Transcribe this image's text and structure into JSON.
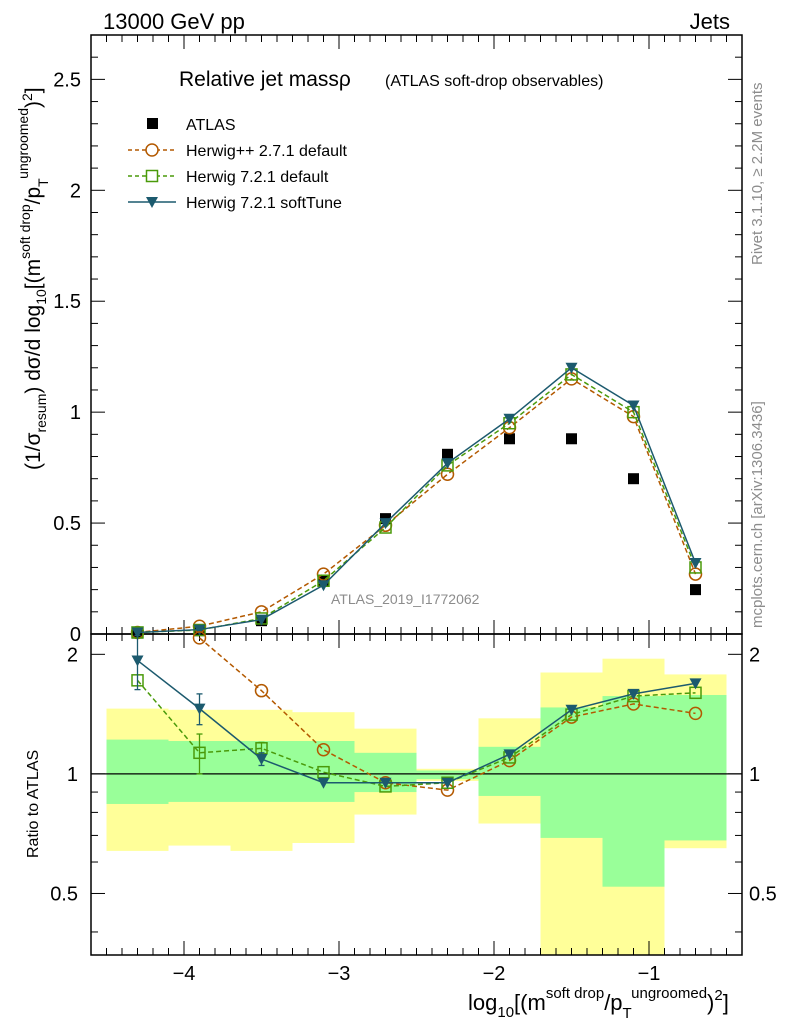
{
  "header": {
    "left": "13000 GeV pp",
    "right": "Jets"
  },
  "side_labels": {
    "rivet": "Rivet 3.1.10, ≥ 2.2M events",
    "mcplots": "mcplots.cern.ch [arXiv:1306.3436]"
  },
  "plot_title": {
    "main": "Relative jet massρ",
    "sub": "(ATLAS soft-drop observables)"
  },
  "watermark": "ATLAS_2019_I1772062",
  "axis_labels": {
    "main_y": "(1/σ_resum) dσ/d log10[(m^soft drop/pT^ungroomed)2]",
    "ratio_y": "Ratio to ATLAS",
    "x": "log10[(m^soft drop/pT^ungroomed)2]"
  },
  "colors": {
    "atlas": "#000000",
    "herwigpp": "#b35900",
    "herwig721": "#4a9a0a",
    "softtune": "#1c5a6e",
    "band_inner": "#99ff99",
    "band_outer": "#ffff99"
  },
  "chart_data": [
    {
      "type": "line",
      "panel": "main",
      "title": "Relative jet massρ (ATLAS soft-drop observables)",
      "xlabel": "log10[(m^soft drop/pT^ungroomed)2]",
      "ylabel": "(1/σ_resum) dσ/d log10[(m^soft drop/pT^ungroomed)2]",
      "xlim": [
        -4.6,
        -0.4
      ],
      "ylim": [
        0,
        2.7
      ],
      "x_ticks": [
        "−4",
        "−3",
        "−2",
        "−1"
      ],
      "y_ticks": [
        "0",
        "0.5",
        "1",
        "1.5",
        "2",
        "2.5"
      ],
      "legend_position": "top-left",
      "x": [
        -4.3,
        -3.9,
        -3.5,
        -3.1,
        -2.7,
        -2.3,
        -1.9,
        -1.5,
        -1.1,
        -0.7
      ],
      "series": [
        {
          "name": "ATLAS",
          "marker": "square-filled",
          "color": "#000000",
          "values": [
            0.004,
            0.015,
            0.06,
            0.24,
            0.52,
            0.81,
            0.88,
            0.88,
            0.7,
            0.2
          ]
        },
        {
          "name": "Herwig++ 2.7.1 default",
          "marker": "circle-open",
          "line": "dashed",
          "color": "#b35900",
          "values": [
            0.007,
            0.035,
            0.1,
            0.27,
            0.49,
            0.72,
            0.93,
            1.15,
            0.98,
            0.27
          ]
        },
        {
          "name": "Herwig 7.2.1 default",
          "marker": "square-open",
          "line": "dashed",
          "color": "#4a9a0a",
          "values": [
            0.007,
            0.018,
            0.07,
            0.24,
            0.48,
            0.76,
            0.95,
            1.17,
            1.0,
            0.3
          ]
        },
        {
          "name": "Herwig 7.2.1 softTune",
          "marker": "triangle-down",
          "line": "solid",
          "color": "#1c5a6e",
          "values": [
            0.007,
            0.02,
            0.065,
            0.22,
            0.5,
            0.77,
            0.97,
            1.2,
            1.03,
            0.32
          ]
        }
      ]
    },
    {
      "type": "line",
      "panel": "ratio",
      "ylabel": "Ratio to ATLAS",
      "xlim": [
        -4.6,
        -0.4
      ],
      "ylim": [
        0.35,
        2.25
      ],
      "y_ticks": [
        "0.5",
        "1",
        "2"
      ],
      "y_log": true,
      "reference_line": 1,
      "bands": {
        "x_edges": [
          -4.5,
          -4.1,
          -3.7,
          -3.3,
          -2.9,
          -2.5,
          -2.1,
          -1.7,
          -1.3,
          -0.9,
          -0.5
        ],
        "inner_low": [
          0.84,
          0.85,
          0.85,
          0.85,
          0.9,
          0.97,
          0.88,
          0.69,
          0.52,
          0.68
        ],
        "inner_high": [
          1.22,
          1.21,
          1.21,
          1.21,
          1.13,
          1.02,
          1.17,
          1.47,
          1.57,
          1.58
        ],
        "outer_low": [
          0.64,
          0.66,
          0.64,
          0.67,
          0.79,
          0.96,
          0.75,
          0.33,
          0.33,
          0.65
        ],
        "outer_high": [
          1.46,
          1.45,
          1.45,
          1.43,
          1.3,
          1.03,
          1.38,
          1.8,
          1.95,
          1.78
        ]
      },
      "x": [
        -4.3,
        -3.9,
        -3.5,
        -3.1,
        -2.7,
        -2.3,
        -1.9,
        -1.5,
        -1.1,
        -0.7
      ],
      "series": [
        {
          "name": "Herwig++ 2.7.1 default",
          "marker": "circle-open",
          "line": "dashed",
          "color": "#b35900",
          "values": [
            null,
            2.2,
            1.62,
            1.15,
            0.95,
            0.91,
            1.08,
            1.39,
            1.5,
            1.42
          ]
        },
        {
          "name": "Herwig 7.2.1 default",
          "marker": "square-open",
          "line": "dashed",
          "color": "#4a9a0a",
          "values": [
            1.72,
            1.13,
            1.16,
            1.01,
            0.93,
            0.95,
            1.1,
            1.41,
            1.57,
            1.6
          ],
          "errors": [
            null,
            0.13,
            0.04,
            null,
            null,
            null,
            null,
            null,
            null,
            null
          ]
        },
        {
          "name": "Herwig 7.2.1 softTune",
          "marker": "triangle-down",
          "line": "solid",
          "color": "#1c5a6e",
          "values": [
            1.93,
            1.46,
            1.09,
            0.95,
            0.95,
            0.95,
            1.12,
            1.45,
            1.59,
            1.69
          ],
          "errors": [
            0.3,
            0.13,
            0.04,
            null,
            null,
            null,
            null,
            null,
            null,
            null
          ]
        }
      ]
    }
  ]
}
